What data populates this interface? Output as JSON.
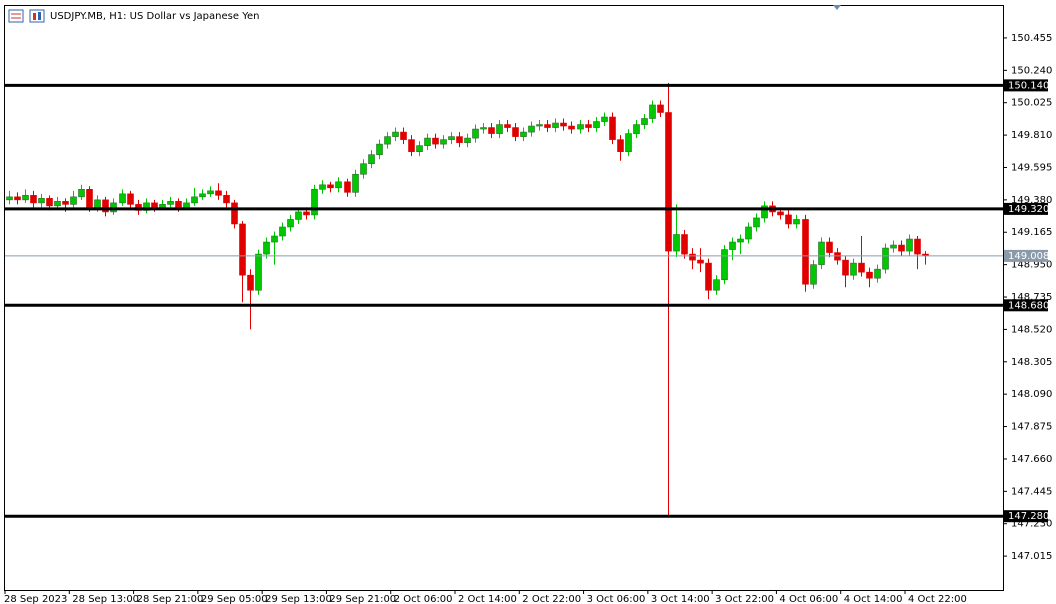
{
  "chart_data": {
    "type": "candlestick",
    "title": "USDJPY.MB, H1:  US Dollar vs Japanese Yen",
    "up_color": "#00c800",
    "down_color": "#e00000",
    "xlim": [
      -0.5,
      123.7
    ],
    "xticks": [
      {
        "value": 0,
        "label": "28 Sep 2023"
      },
      {
        "value": 8,
        "label": "28 Sep 13:00"
      },
      {
        "value": 16,
        "label": "28 Sep 21:00"
      },
      {
        "value": 24,
        "label": "29 Sep 05:00"
      },
      {
        "value": 32,
        "label": "29 Sep 13:00"
      },
      {
        "value": 40,
        "label": "29 Sep 21:00"
      },
      {
        "value": 48,
        "label": "2 Oct 06:00"
      },
      {
        "value": 56,
        "label": "2 Oct 14:00"
      },
      {
        "value": 64,
        "label": "2 Oct 22:00"
      },
      {
        "value": 72,
        "label": "3 Oct 06:00"
      },
      {
        "value": 80,
        "label": "3 Oct 14:00"
      },
      {
        "value": 88,
        "label": "3 Oct 22:00"
      },
      {
        "value": 96,
        "label": "4 Oct 06:00"
      },
      {
        "value": 104,
        "label": "4 Oct 14:00"
      },
      {
        "value": 112,
        "label": "4 Oct 22:00"
      }
    ],
    "ylim": [
      146.79,
      150.667
    ],
    "yticks": [
      150.455,
      {
        "value": 150.24,
        "label": "150.240"
      },
      150.025,
      {
        "value": 149.81,
        "label": "149.810"
      },
      149.595,
      {
        "value": 149.38,
        "label": "149.380"
      },
      149.165,
      {
        "value": 148.95,
        "label": "148.950"
      },
      148.735,
      {
        "value": 148.52,
        "label": "148.520"
      },
      148.305,
      {
        "value": 148.09,
        "label": "148.090"
      },
      147.875,
      {
        "value": 147.66,
        "label": "147.660"
      },
      147.445,
      {
        "value": 147.23,
        "label": "147.230"
      },
      147.015
    ],
    "levels": [
      {
        "value": 150.14,
        "label": "150.140"
      },
      {
        "value": 149.32,
        "label": "149.320"
      },
      {
        "value": 148.68,
        "label": "148.680"
      },
      {
        "value": 147.28,
        "label": "147.280"
      }
    ],
    "last_price": {
      "value": 149.008,
      "label": "149.008"
    },
    "candles": [
      [
        149.38,
        149.44,
        149.35,
        149.4
      ],
      [
        149.4,
        149.43,
        149.35,
        149.38
      ],
      [
        149.38,
        149.45,
        149.36,
        149.41
      ],
      [
        149.41,
        149.44,
        149.33,
        149.36
      ],
      [
        149.36,
        149.42,
        149.33,
        149.39
      ],
      [
        149.39,
        149.41,
        149.31,
        149.34
      ],
      [
        149.34,
        149.4,
        149.32,
        149.37
      ],
      [
        149.37,
        149.39,
        149.3,
        149.35
      ],
      [
        149.35,
        149.44,
        149.33,
        149.4
      ],
      [
        149.4,
        149.48,
        149.38,
        149.45
      ],
      [
        149.45,
        149.47,
        149.3,
        149.33
      ],
      [
        149.33,
        149.41,
        149.3,
        149.38
      ],
      [
        149.38,
        149.4,
        149.27,
        149.3
      ],
      [
        149.3,
        149.39,
        149.28,
        149.36
      ],
      [
        149.36,
        149.45,
        149.34,
        149.42
      ],
      [
        149.42,
        149.44,
        149.32,
        149.35
      ],
      [
        149.35,
        149.38,
        149.28,
        149.31
      ],
      [
        149.31,
        149.39,
        149.29,
        149.36
      ],
      [
        149.36,
        149.38,
        149.3,
        149.33
      ],
      [
        149.33,
        149.38,
        149.31,
        149.35
      ],
      [
        149.35,
        149.4,
        149.33,
        149.37
      ],
      [
        149.37,
        149.39,
        149.3,
        149.33
      ],
      [
        149.33,
        149.39,
        149.31,
        149.36
      ],
      [
        149.36,
        149.46,
        149.34,
        149.4
      ],
      [
        149.4,
        149.45,
        149.38,
        149.42
      ],
      [
        149.42,
        149.47,
        149.4,
        149.44
      ],
      [
        149.44,
        149.49,
        149.38,
        149.41
      ],
      [
        149.41,
        149.44,
        149.33,
        149.36
      ],
      [
        149.36,
        149.38,
        149.19,
        149.22
      ],
      [
        149.22,
        149.24,
        148.7,
        148.88
      ],
      [
        148.88,
        148.92,
        148.52,
        148.78
      ],
      [
        148.78,
        149.05,
        148.75,
        149.02
      ],
      [
        149.02,
        149.13,
        148.99,
        149.1
      ],
      [
        149.1,
        149.17,
        148.95,
        149.14
      ],
      [
        149.14,
        149.23,
        149.11,
        149.2
      ],
      [
        149.2,
        149.28,
        149.17,
        149.25
      ],
      [
        149.25,
        149.33,
        149.22,
        149.3
      ],
      [
        149.3,
        149.33,
        149.25,
        149.28
      ],
      [
        149.28,
        149.48,
        149.25,
        149.45
      ],
      [
        149.45,
        149.51,
        149.42,
        149.48
      ],
      [
        149.48,
        149.5,
        149.43,
        149.46
      ],
      [
        149.46,
        149.53,
        149.43,
        149.5
      ],
      [
        149.5,
        149.52,
        149.4,
        149.43
      ],
      [
        149.43,
        149.58,
        149.4,
        149.55
      ],
      [
        149.55,
        149.65,
        149.52,
        149.62
      ],
      [
        149.62,
        149.71,
        149.59,
        149.68
      ],
      [
        149.68,
        149.78,
        149.65,
        149.75
      ],
      [
        149.75,
        149.83,
        149.72,
        149.8
      ],
      [
        149.8,
        149.86,
        149.77,
        149.83
      ],
      [
        149.83,
        149.86,
        149.75,
        149.78
      ],
      [
        149.78,
        149.81,
        149.67,
        149.7
      ],
      [
        149.7,
        149.77,
        149.67,
        149.74
      ],
      [
        149.74,
        149.82,
        149.71,
        149.79
      ],
      [
        149.79,
        149.82,
        149.72,
        149.75
      ],
      [
        149.75,
        149.81,
        149.72,
        149.78
      ],
      [
        149.78,
        149.83,
        149.75,
        149.8
      ],
      [
        149.8,
        149.83,
        149.73,
        149.76
      ],
      [
        149.76,
        149.82,
        149.73,
        149.79
      ],
      [
        149.79,
        149.88,
        149.76,
        149.85
      ],
      [
        149.85,
        149.89,
        149.82,
        149.86
      ],
      [
        149.86,
        149.89,
        149.79,
        149.82
      ],
      [
        149.82,
        149.91,
        149.79,
        149.88
      ],
      [
        149.88,
        149.91,
        149.83,
        149.86
      ],
      [
        149.86,
        149.89,
        149.77,
        149.8
      ],
      [
        149.8,
        149.86,
        149.77,
        149.83
      ],
      [
        149.83,
        149.9,
        149.8,
        149.87
      ],
      [
        149.87,
        149.91,
        149.84,
        149.88
      ],
      [
        149.88,
        149.91,
        149.83,
        149.86
      ],
      [
        149.86,
        149.92,
        149.83,
        149.89
      ],
      [
        149.89,
        149.92,
        149.84,
        149.87
      ],
      [
        149.87,
        149.9,
        149.82,
        149.85
      ],
      [
        149.85,
        149.91,
        149.82,
        149.88
      ],
      [
        149.88,
        149.91,
        149.83,
        149.86
      ],
      [
        149.86,
        149.93,
        149.83,
        149.9
      ],
      [
        149.9,
        149.96,
        149.87,
        149.93
      ],
      [
        149.93,
        149.96,
        149.75,
        149.78
      ],
      [
        149.78,
        149.81,
        149.64,
        149.7
      ],
      [
        149.7,
        149.85,
        149.67,
        149.82
      ],
      [
        149.82,
        149.91,
        149.79,
        149.88
      ],
      [
        149.88,
        149.95,
        149.85,
        149.92
      ],
      [
        149.92,
        150.04,
        149.89,
        150.01
      ],
      [
        150.01,
        150.04,
        149.93,
        149.96
      ],
      [
        149.96,
        150.157,
        147.275,
        149.04
      ],
      [
        149.04,
        149.35,
        149.0,
        149.15
      ],
      [
        149.15,
        149.18,
        148.99,
        149.02
      ],
      [
        149.02,
        149.06,
        148.92,
        148.98
      ],
      [
        148.98,
        149.06,
        148.9,
        148.96
      ],
      [
        148.96,
        148.99,
        148.72,
        148.78
      ],
      [
        148.78,
        148.88,
        148.75,
        148.85
      ],
      [
        148.85,
        149.08,
        148.82,
        149.05
      ],
      [
        149.05,
        149.13,
        148.98,
        149.1
      ],
      [
        149.1,
        149.15,
        149.02,
        149.12
      ],
      [
        149.12,
        149.23,
        149.09,
        149.2
      ],
      [
        149.2,
        149.29,
        149.17,
        149.26
      ],
      [
        149.26,
        149.37,
        149.23,
        149.34
      ],
      [
        149.34,
        149.37,
        149.27,
        149.3
      ],
      [
        149.3,
        149.33,
        149.25,
        149.28
      ],
      [
        149.28,
        149.31,
        149.19,
        149.22
      ],
      [
        149.22,
        149.28,
        149.19,
        149.25
      ],
      [
        149.25,
        149.28,
        148.77,
        148.82
      ],
      [
        148.82,
        148.98,
        148.79,
        148.95
      ],
      [
        148.95,
        149.13,
        148.92,
        149.1
      ],
      [
        149.1,
        149.13,
        149.0,
        149.03
      ],
      [
        149.03,
        149.06,
        148.95,
        148.98
      ],
      [
        148.98,
        149.01,
        148.8,
        148.88
      ],
      [
        148.88,
        148.99,
        148.85,
        148.96
      ],
      [
        148.96,
        149.14,
        148.87,
        148.9
      ],
      [
        148.9,
        148.93,
        148.8,
        148.86
      ],
      [
        148.86,
        148.95,
        148.83,
        148.92
      ],
      [
        148.92,
        149.09,
        148.89,
        149.06
      ],
      [
        149.06,
        149.11,
        149.03,
        149.08
      ],
      [
        149.08,
        149.11,
        149.01,
        149.04
      ],
      [
        149.04,
        149.15,
        149.01,
        149.12
      ],
      [
        149.12,
        149.14,
        148.92,
        149.02
      ],
      [
        149.02,
        149.04,
        148.95,
        149.01
      ]
    ]
  }
}
